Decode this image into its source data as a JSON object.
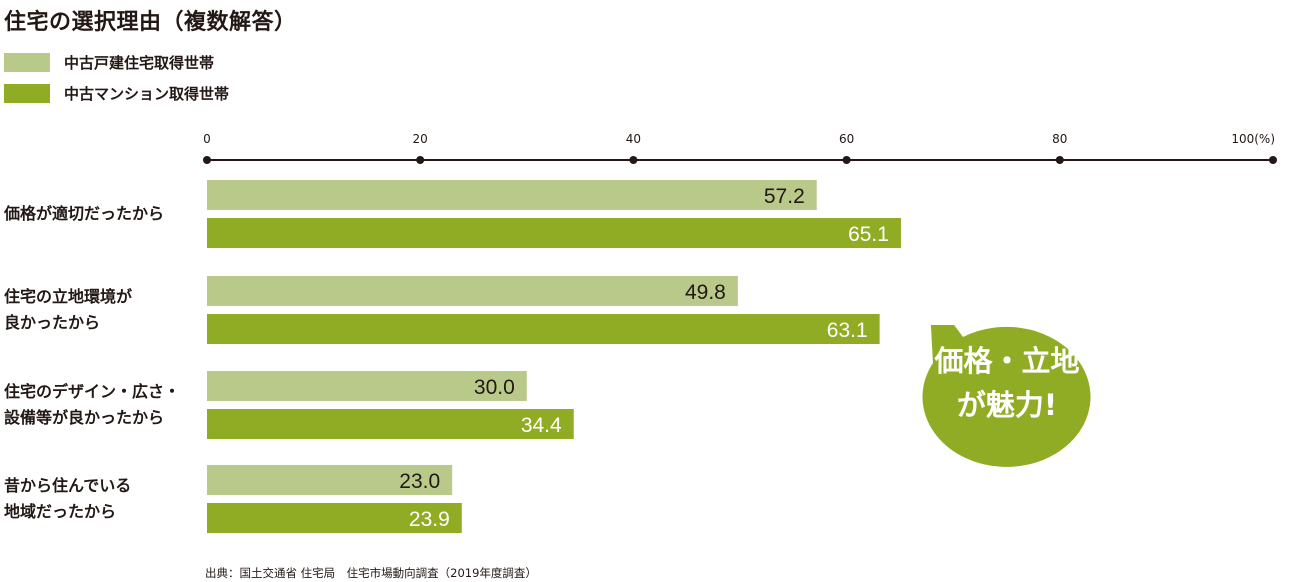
{
  "title": "住宅の選択理由（複数解答）",
  "legend": [
    {
      "label": "中古戸建住宅取得世帯",
      "color": "#b9c98a"
    },
    {
      "label": "中古マンション取得世帯",
      "color": "#8fac24"
    }
  ],
  "callout": {
    "text": "価格・立地\nが魅力!",
    "color": "#8fac24"
  },
  "source": "出典：国土交通省 住宅局　住宅市場動向調査（2019年度調査）",
  "chart_data": {
    "type": "bar",
    "orientation": "horizontal",
    "categories": [
      "価格が適切だったから",
      "住宅の立地環境が\n良かったから",
      "住宅のデザイン・広さ・\n設備等が良かったから",
      "昔から住んでいる\n地域だったから"
    ],
    "series": [
      {
        "name": "中古戸建住宅取得世帯",
        "color": "#b9c98a",
        "values": [
          57.2,
          49.8,
          30.0,
          23.0
        ]
      },
      {
        "name": "中古マンション取得世帯",
        "color": "#8fac24",
        "values": [
          65.1,
          63.1,
          34.4,
          23.9
        ]
      }
    ],
    "xlim": [
      0,
      100
    ],
    "ticks": [
      "0",
      "20",
      "40",
      "60",
      "80",
      "100(%)"
    ],
    "xlabel": "",
    "ylabel": "",
    "axis_position": "top",
    "grid": false
  }
}
